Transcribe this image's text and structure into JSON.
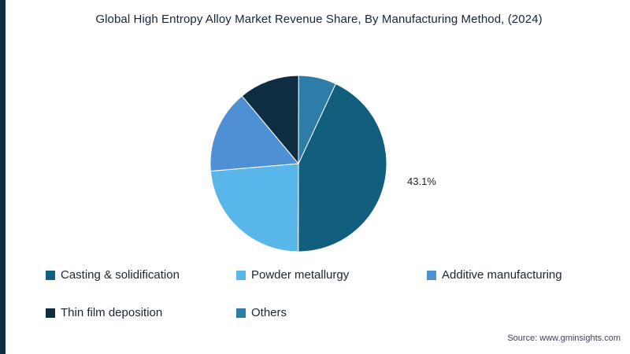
{
  "title": "Global High Entropy Alloy Market Revenue Share, By Manufacturing Method,  (2024)",
  "source": "Source: www.gminsights.com",
  "accent_bar_color": "#0e2f41",
  "chart_data": {
    "type": "pie",
    "title": "Global High Entropy Alloy Market Revenue Share, By Manufacturing Method, (2024)",
    "unit": "%",
    "legend_position": "bottom",
    "start_angle_deg": 25,
    "shown_label": "43.1%",
    "slices": [
      {
        "label": "Casting & solidification",
        "value": 43.1,
        "color": "#115e7e"
      },
      {
        "label": "Powder metallurgy",
        "value": 23.6,
        "color": "#58b7e8"
      },
      {
        "label": "Additive manufacturing",
        "value": 15.3,
        "color": "#4f8fd3"
      },
      {
        "label": "Thin film deposition",
        "value": 11.1,
        "color": "#0d2e40"
      },
      {
        "label": "Others",
        "value": 6.9,
        "color": "#2e7ca8"
      }
    ]
  }
}
